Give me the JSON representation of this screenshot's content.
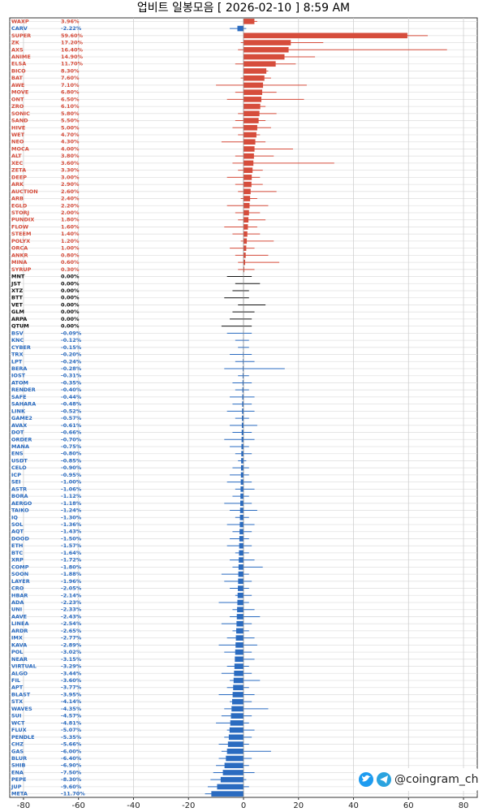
{
  "chart_data": {
    "type": "range_bar",
    "title": "업비트 일봉모음 [ 2026-02-10 ]  8:59 AM",
    "watermark": "@coingram_ch",
    "categories": [
      "WAXP",
      "CARV",
      "SUPER",
      "ZK",
      "AXS",
      "ANIME",
      "ELSA",
      "BICO",
      "BAT",
      "AWE",
      "MOVE",
      "ONT",
      "ZRO",
      "SONIC",
      "SAND",
      "HIVE",
      "WET",
      "NEO",
      "MOCA",
      "ALT",
      "XEC",
      "ZETA",
      "DEEP",
      "ARK",
      "AUCTION",
      "ARB",
      "EGLD",
      "STORJ",
      "PUNDIX",
      "FLOW",
      "STEEM",
      "POLYX",
      "ORCA",
      "ANKR",
      "MINA",
      "SYRUP",
      "MNT",
      "JST",
      "XTZ",
      "BTT",
      "VET",
      "GLM",
      "ARPA",
      "QTUM",
      "BSV",
      "KNC",
      "CYBER",
      "TRX",
      "LPT",
      "BERA",
      "IOST",
      "ATOM",
      "RENDER",
      "SAFE",
      "SAHARA",
      "LINK",
      "GAME2",
      "AVAX",
      "DOT",
      "ORDER",
      "MANA",
      "ENS",
      "USDT",
      "CELO",
      "ICP",
      "SEI",
      "ASTR",
      "BORA",
      "AERGO",
      "TAIKO",
      "IQ",
      "SOL",
      "AQT",
      "DOOD",
      "ETH",
      "BTC",
      "XRP",
      "COMP",
      "SOON",
      "LAYER",
      "CRO",
      "HBAR",
      "ADA",
      "UNI",
      "AAVE",
      "LINEA",
      "ARDR",
      "IMX",
      "KAVA",
      "POL",
      "NEAR",
      "VIRTUAL",
      "ALGO",
      "FIL",
      "APT",
      "BLAST",
      "STX",
      "WAVES",
      "SUI",
      "WCT",
      "FLUX",
      "PENDLE",
      "CHZ",
      "GAS",
      "BLUR",
      "SHIB",
      "ENA",
      "PEPE",
      "JUP",
      "META"
    ],
    "values": [
      3.96,
      -2.22,
      59.6,
      17.2,
      16.4,
      14.9,
      11.7,
      8.3,
      7.6,
      7.1,
      6.8,
      6.5,
      6.1,
      5.8,
      5.5,
      5.0,
      4.7,
      4.3,
      4.0,
      3.8,
      3.6,
      3.3,
      3.0,
      2.9,
      2.6,
      2.4,
      2.2,
      2.0,
      1.8,
      1.6,
      1.4,
      1.2,
      1.0,
      0.8,
      0.6,
      0.3,
      0,
      0,
      0,
      0,
      0,
      0,
      0,
      0,
      -0.09,
      -0.12,
      -0.15,
      -0.2,
      -0.24,
      -0.28,
      -0.31,
      -0.35,
      -0.4,
      -0.44,
      -0.48,
      -0.52,
      -0.57,
      -0.61,
      -0.66,
      -0.7,
      -0.75,
      -0.8,
      -0.85,
      -0.9,
      -0.95,
      -1.0,
      -1.06,
      -1.12,
      -1.18,
      -1.24,
      -1.3,
      -1.36,
      -1.43,
      -1.5,
      -1.57,
      -1.64,
      -1.72,
      -1.8,
      -1.88,
      -1.96,
      -2.05,
      -2.14,
      -2.23,
      -2.33,
      -2.43,
      -2.54,
      -2.65,
      -2.77,
      -2.89,
      -3.02,
      -3.15,
      -3.29,
      -3.44,
      -3.6,
      -3.77,
      -3.95,
      -4.14,
      -4.35,
      -4.57,
      -4.81,
      -5.07,
      -5.35,
      -5.66,
      -6.0,
      -6.4,
      -6.9,
      -7.5,
      -8.3,
      -9.6,
      -11.7
    ],
    "value_labels": [
      "3.96%",
      "-2.22%",
      "59.60%",
      "17.20%",
      "16.40%",
      "14.90%",
      "11.70%",
      "8.30%",
      "7.60%",
      "7.10%",
      "6.80%",
      "6.50%",
      "6.10%",
      "5.80%",
      "5.50%",
      "5.00%",
      "4.70%",
      "4.30%",
      "4.00%",
      "3.80%",
      "3.60%",
      "3.30%",
      "3.00%",
      "2.90%",
      "2.60%",
      "2.40%",
      "2.20%",
      "2.00%",
      "1.80%",
      "1.60%",
      "1.40%",
      "1.20%",
      "1.00%",
      "0.80%",
      "0.60%",
      "0.30%",
      "0.00%",
      "0.00%",
      "0.00%",
      "0.00%",
      "0.00%",
      "0.00%",
      "0.00%",
      "0.00%",
      "-0.09%",
      "-0.12%",
      "-0.15%",
      "-0.20%",
      "-0.24%",
      "-0.28%",
      "-0.31%",
      "-0.35%",
      "-0.40%",
      "-0.44%",
      "-0.48%",
      "-0.52%",
      "-0.57%",
      "-0.61%",
      "-0.66%",
      "-0.70%",
      "-0.75%",
      "-0.80%",
      "-0.85%",
      "-0.90%",
      "-0.95%",
      "-1.00%",
      "-1.06%",
      "-1.12%",
      "-1.18%",
      "-1.24%",
      "-1.30%",
      "-1.36%",
      "-1.43%",
      "-1.50%",
      "-1.57%",
      "-1.64%",
      "-1.72%",
      "-1.80%",
      "-1.88%",
      "-1.96%",
      "-2.05%",
      "-2.14%",
      "-2.23%",
      "-2.33%",
      "-2.43%",
      "-2.54%",
      "-2.65%",
      "-2.77%",
      "-2.89%",
      "-3.02%",
      "-3.15%",
      "-3.29%",
      "-3.44%",
      "-3.60%",
      "-3.77%",
      "-3.95%",
      "-4.14%",
      "-4.35%",
      "-4.57%",
      "-4.81%",
      "-5.07%",
      "-5.35%",
      "-5.66%",
      "-6.00%",
      "-6.40%",
      "-6.90%",
      "-7.50%",
      "-8.30%",
      "-9.60%",
      "-11.70%"
    ],
    "low": [
      0,
      -5,
      0,
      -1,
      -2,
      0,
      -3,
      0,
      -1,
      -10,
      -3,
      -6,
      0,
      -2,
      -3,
      -4,
      -2,
      -8,
      0,
      -3,
      -4,
      -2,
      -6,
      -3,
      -2,
      -1,
      -6,
      -3,
      -2,
      -7,
      -4,
      -1,
      -5,
      -3,
      -2,
      -2,
      -6,
      -3,
      -4,
      -7,
      -2,
      -4,
      -5,
      -8,
      -6,
      -3,
      -2,
      -5,
      -3,
      -7,
      -2,
      -4,
      -3,
      -5,
      -4,
      -6,
      -3,
      -5,
      -4,
      -7,
      -5,
      -3,
      -2,
      -4,
      -5,
      -6,
      -3,
      -4,
      -7,
      -5,
      -3,
      -6,
      -4,
      -5,
      -6,
      -3,
      -5,
      -4,
      -8,
      -7,
      -5,
      -3,
      -9,
      -4,
      -5,
      -8,
      -4,
      -6,
      -9,
      -7,
      -3,
      -6,
      -8,
      -5,
      -6,
      -9,
      -5,
      -7,
      -8,
      -10,
      -6,
      -7,
      -9,
      -8,
      -9,
      -10,
      -11,
      -12,
      -13,
      -14
    ],
    "high": [
      5,
      1,
      67,
      29,
      74,
      26,
      19,
      9,
      10,
      23,
      12,
      22,
      8,
      12,
      8,
      10,
      6,
      8,
      18,
      11,
      33,
      7,
      6,
      7,
      12,
      5,
      9,
      6,
      8,
      5,
      6,
      11,
      4,
      9,
      13,
      4,
      3,
      6,
      2,
      2,
      8,
      4,
      3,
      3,
      3,
      2,
      2,
      3,
      4,
      15,
      2,
      3,
      2,
      4,
      3,
      4,
      2,
      5,
      3,
      4,
      2,
      3,
      1,
      2,
      2,
      3,
      4,
      2,
      3,
      5,
      2,
      4,
      3,
      2,
      3,
      2,
      4,
      7,
      2,
      3,
      2,
      3,
      2,
      4,
      6,
      3,
      2,
      4,
      5,
      3,
      4,
      2,
      3,
      6,
      2,
      4,
      3,
      9,
      3,
      2,
      4,
      3,
      2,
      10,
      3,
      2,
      4,
      1,
      2,
      0
    ],
    "colors": {
      "up": "#d64d3c",
      "flat": "#111111",
      "down": "#2a6bc0"
    },
    "xlim": [
      -85,
      85
    ],
    "xticks": [
      -80,
      -60,
      -40,
      -20,
      0,
      20,
      40,
      60,
      80
    ],
    "grid": true
  }
}
